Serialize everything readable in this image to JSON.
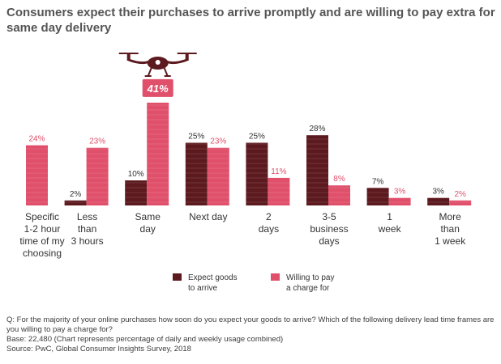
{
  "title": "Consumers expect their purchases to arrive promptly and are willing to pay extra for same day delivery",
  "callout": "41%",
  "icon": "drone-icon",
  "colors": {
    "expect": "#5c1a1f",
    "willing": "#e0506b",
    "callout_bg": "#e0506b",
    "drone": "#5c1a1f",
    "text_willing": "#e0506b"
  },
  "chart_data": {
    "type": "bar",
    "categories": [
      "Specific\n1-2 hour\ntime of my\nchoosing",
      "Less\nthan\n3 hours",
      "Same\nday",
      "Next day",
      "2\ndays",
      "3-5\nbusiness\ndays",
      "1\nweek",
      "More\nthan\n1 week"
    ],
    "series": [
      {
        "name": "Expect goods\nto arrive",
        "values": [
          null,
          2,
          10,
          25,
          25,
          28,
          7,
          3
        ],
        "labels": [
          "",
          "2%",
          "10%",
          "25%",
          "25%",
          "28%",
          "7%",
          "3%"
        ]
      },
      {
        "name": "Willing to pay\na charge for",
        "values": [
          24,
          23,
          41,
          23,
          11,
          8,
          3,
          2
        ],
        "labels": [
          "24%",
          "23%",
          "",
          "23%",
          "11%",
          "8%",
          "3%",
          "2%"
        ]
      }
    ],
    "ylim": [
      0,
      41
    ],
    "grid": false,
    "legend": "bottom-center"
  },
  "footer": {
    "question": "Q: For the majority of your online purchases how soon do you expect your goods to arrive? Which of the following delivery lead time frames are you willing to pay a charge for?",
    "base": "Base: 22,480 (Chart represents percentage of daily and weekly usage combined)",
    "source": "Source: PwC, Global Consumer Insights Survey, 2018"
  }
}
